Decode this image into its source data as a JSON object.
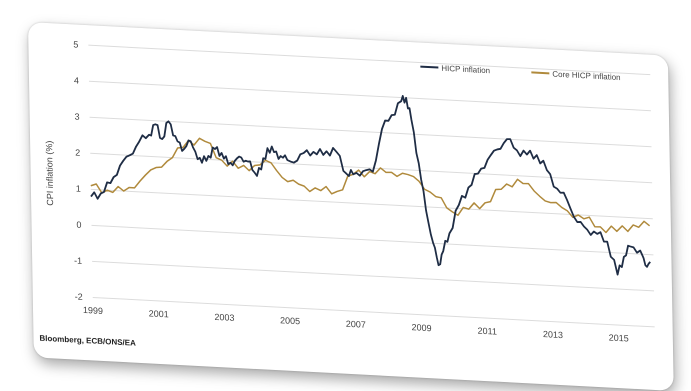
{
  "chart_data": {
    "type": "line",
    "ylabel": "CPI inflation (%)",
    "xlabel": "",
    "ylim": [
      -2,
      5
    ],
    "xlim": [
      1999.0,
      2016.1
    ],
    "y_ticks": [
      -2,
      -1,
      0,
      1,
      2,
      3,
      4,
      5
    ],
    "x_ticks": [
      "1999",
      "2001",
      "2003",
      "2005",
      "2007",
      "2009",
      "2011",
      "2013",
      "2015"
    ],
    "grid": true,
    "legend_position": "top-right",
    "series": [
      {
        "name": "HICP inflation",
        "color": "#1f2d45",
        "points": [
          [
            1999.0,
            0.8
          ],
          [
            1999.3,
            0.9
          ],
          [
            1999.6,
            1.2
          ],
          [
            1999.9,
            1.7
          ],
          [
            2000.2,
            2.0
          ],
          [
            2000.5,
            2.4
          ],
          [
            2000.8,
            2.6
          ],
          [
            2001.0,
            2.9
          ],
          [
            2001.2,
            2.5
          ],
          [
            2001.4,
            3.0
          ],
          [
            2001.6,
            2.6
          ],
          [
            2001.8,
            2.2
          ],
          [
            2002.0,
            2.5
          ],
          [
            2002.2,
            2.2
          ],
          [
            2002.4,
            1.9
          ],
          [
            2002.6,
            2.1
          ],
          [
            2002.8,
            2.3
          ],
          [
            2003.0,
            2.2
          ],
          [
            2003.2,
            1.9
          ],
          [
            2003.4,
            2.0
          ],
          [
            2003.6,
            2.1
          ],
          [
            2003.8,
            2.0
          ],
          [
            2004.0,
            1.7
          ],
          [
            2004.2,
            1.8
          ],
          [
            2004.4,
            2.4
          ],
          [
            2004.6,
            2.3
          ],
          [
            2004.8,
            2.2
          ],
          [
            2005.0,
            2.1
          ],
          [
            2005.3,
            2.1
          ],
          [
            2005.6,
            2.4
          ],
          [
            2005.9,
            2.3
          ],
          [
            2006.2,
            2.4
          ],
          [
            2006.5,
            2.4
          ],
          [
            2006.8,
            1.8
          ],
          [
            2007.0,
            1.8
          ],
          [
            2007.3,
            1.9
          ],
          [
            2007.6,
            1.9
          ],
          [
            2007.9,
            3.1
          ],
          [
            2008.2,
            3.5
          ],
          [
            2008.5,
            3.9
          ],
          [
            2008.65,
            4.0
          ],
          [
            2008.8,
            3.4
          ],
          [
            2009.0,
            2.2
          ],
          [
            2009.2,
            0.9
          ],
          [
            2009.4,
            0.0
          ],
          [
            2009.55,
            -0.6
          ],
          [
            2009.7,
            -0.2
          ],
          [
            2009.9,
            0.3
          ],
          [
            2010.2,
            1.1
          ],
          [
            2010.5,
            1.6
          ],
          [
            2010.8,
            2.0
          ],
          [
            2011.1,
            2.4
          ],
          [
            2011.4,
            2.7
          ],
          [
            2011.7,
            3.0
          ],
          [
            2012.0,
            2.7
          ],
          [
            2012.3,
            2.6
          ],
          [
            2012.6,
            2.6
          ],
          [
            2012.9,
            2.2
          ],
          [
            2013.2,
            1.7
          ],
          [
            2013.5,
            1.4
          ],
          [
            2013.8,
            0.8
          ],
          [
            2014.1,
            0.6
          ],
          [
            2014.4,
            0.5
          ],
          [
            2014.7,
            0.3
          ],
          [
            2015.0,
            -0.6
          ],
          [
            2015.2,
            -0.1
          ],
          [
            2015.4,
            0.2
          ],
          [
            2015.7,
            0.1
          ],
          [
            2015.85,
            -0.3
          ],
          [
            2016.0,
            -0.2
          ]
        ]
      },
      {
        "name": "Core HICP inflation",
        "color": "#b08a3c",
        "points": [
          [
            1999.0,
            1.1
          ],
          [
            1999.5,
            1.0
          ],
          [
            2000.0,
            1.0
          ],
          [
            2000.5,
            1.3
          ],
          [
            2001.0,
            1.7
          ],
          [
            2001.5,
            2.0
          ],
          [
            2002.0,
            2.5
          ],
          [
            2002.5,
            2.5
          ],
          [
            2003.0,
            2.0
          ],
          [
            2003.5,
            1.8
          ],
          [
            2004.0,
            1.9
          ],
          [
            2004.5,
            2.0
          ],
          [
            2005.0,
            1.5
          ],
          [
            2005.5,
            1.4
          ],
          [
            2006.0,
            1.3
          ],
          [
            2006.5,
            1.3
          ],
          [
            2007.0,
            1.8
          ],
          [
            2007.5,
            1.9
          ],
          [
            2008.0,
            1.9
          ],
          [
            2008.5,
            1.9
          ],
          [
            2009.0,
            1.7
          ],
          [
            2009.5,
            1.3
          ],
          [
            2010.0,
            0.9
          ],
          [
            2010.5,
            1.0
          ],
          [
            2011.0,
            1.2
          ],
          [
            2011.5,
            1.6
          ],
          [
            2012.0,
            1.9
          ],
          [
            2012.5,
            1.6
          ],
          [
            2013.0,
            1.3
          ],
          [
            2013.5,
            1.1
          ],
          [
            2014.0,
            0.9
          ],
          [
            2014.5,
            0.7
          ],
          [
            2015.0,
            0.6
          ],
          [
            2015.5,
            0.8
          ],
          [
            2016.0,
            0.8
          ]
        ]
      }
    ]
  },
  "source_note": "Bloomberg, ECB/ONS/EA",
  "colors": {
    "grid": "#dcdcdc",
    "axis_text": "#444444"
  }
}
